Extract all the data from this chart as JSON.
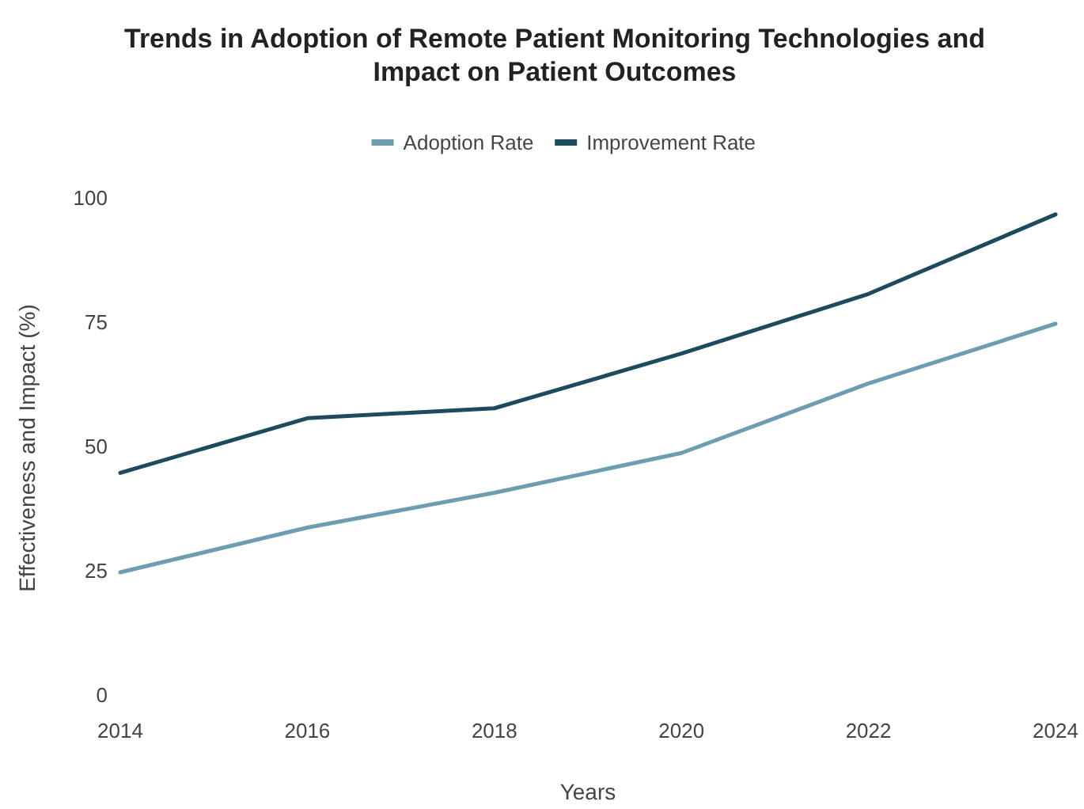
{
  "chart_data": {
    "type": "line",
    "title": "Trends in Adoption of Remote Patient Monitoring Technologies and Impact on Patient Outcomes",
    "xlabel": "Years",
    "ylabel": "Effectiveness and Impact (%)",
    "x": [
      2014,
      2016,
      2018,
      2020,
      2022,
      2024
    ],
    "series": [
      {
        "name": "Adoption Rate",
        "color": "#6c9db1",
        "values": [
          25,
          34,
          41,
          49,
          63,
          75
        ]
      },
      {
        "name": "Improvement Rate",
        "color": "#1d4a5c",
        "values": [
          45,
          56,
          58,
          69,
          81,
          97
        ]
      }
    ],
    "xlim": [
      2014,
      2024
    ],
    "xticks": [
      2014,
      2016,
      2018,
      2020,
      2022,
      2024
    ],
    "ylim": [
      0,
      100
    ],
    "yticks": [
      0,
      25,
      50,
      75,
      100
    ],
    "grid": false,
    "legend": "top",
    "marker": "none",
    "line_style": "solid"
  }
}
